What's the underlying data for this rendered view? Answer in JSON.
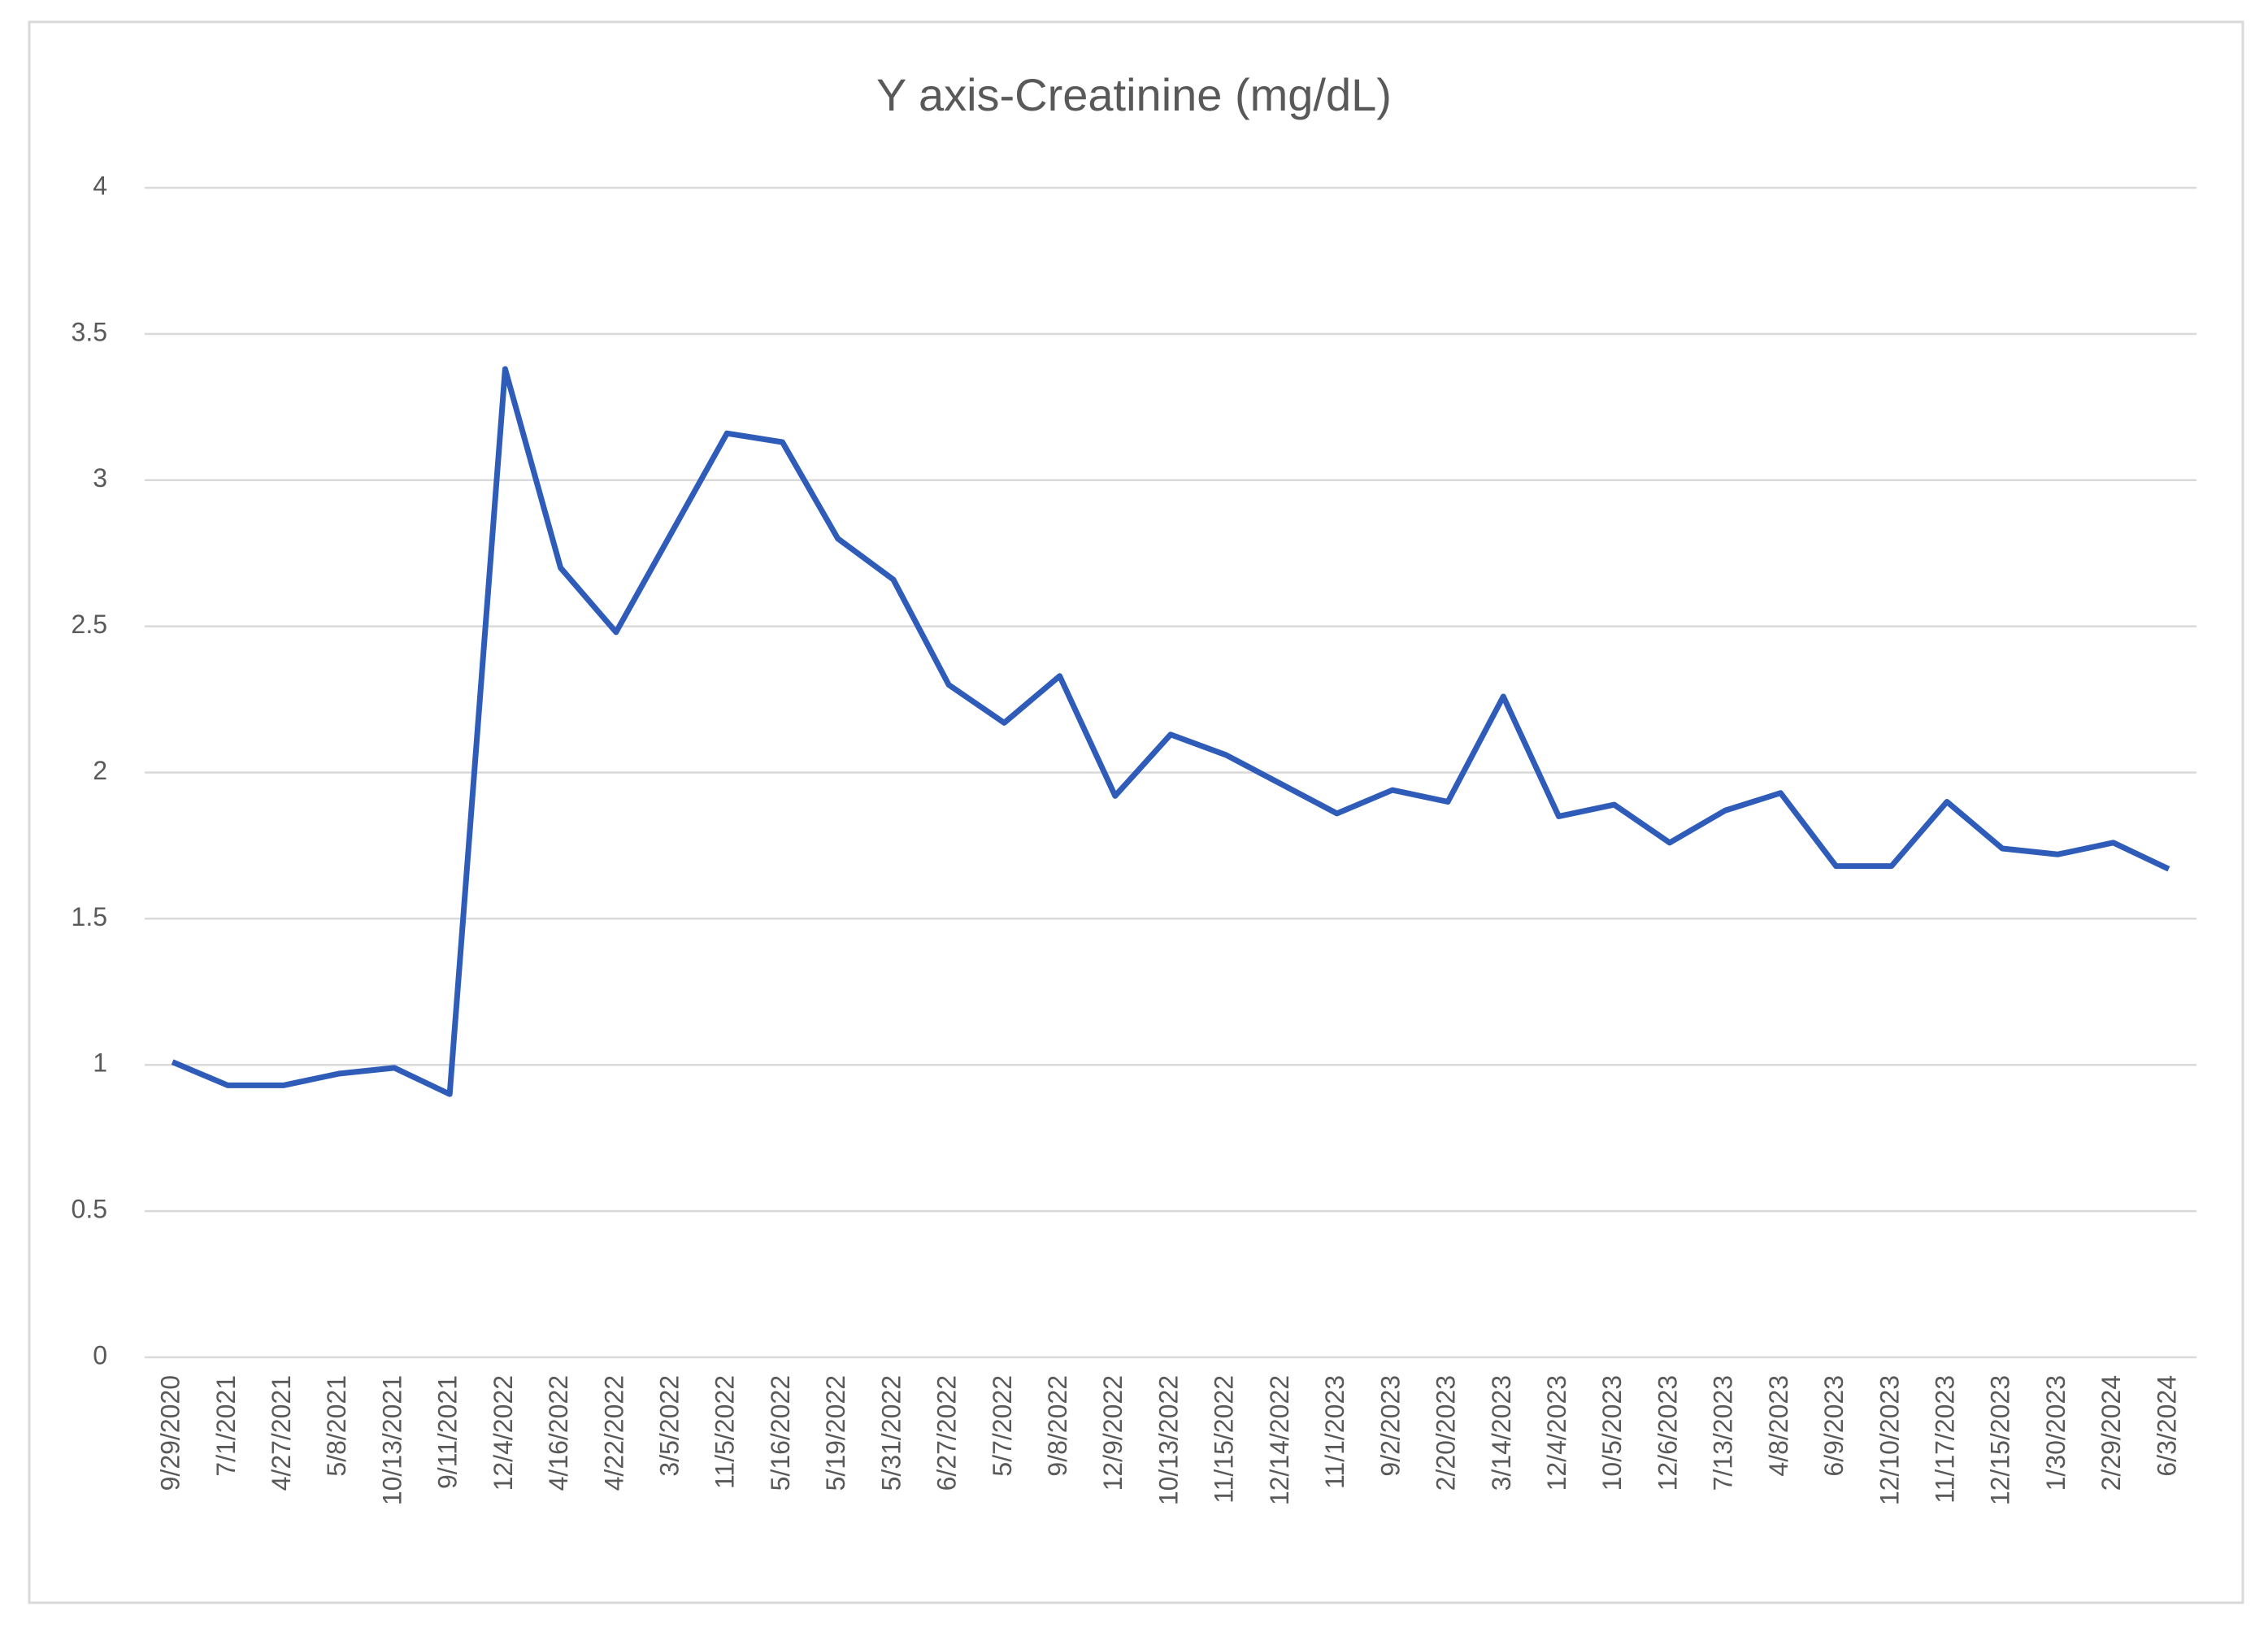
{
  "chart_data": {
    "type": "line",
    "title": "Y axis-Creatinine (mg/dL)",
    "categories": [
      "9/29/2020",
      "7/1/2021",
      "4/27/2021",
      "5/8/2021",
      "10/13/2021",
      "9/11/2021",
      "12/4/2022",
      "4/16/2022",
      "4/22/2022",
      "3/5/2022",
      "11/5/2022",
      "5/16/2022",
      "5/19/2022",
      "5/31/2022",
      "6/27/2022",
      "5/7/2022",
      "9/8/2022",
      "12/9/2022",
      "10/13/2022",
      "11/15/2022",
      "12/14/2022",
      "11/1/2023",
      "9/2/2023",
      "2/20/2023",
      "3/14/2023",
      "12/4/2023",
      "10/5/2023",
      "12/6/2023",
      "7/13/2023",
      "4/8/2023",
      "6/9/2023",
      "12/10/2023",
      "11/17/2023",
      "12/15/2023",
      "1/30/2023",
      "2/29/2024",
      "6/3/2024"
    ],
    "values": [
      1.01,
      0.93,
      0.93,
      0.97,
      0.99,
      0.9,
      3.38,
      2.7,
      2.48,
      2.82,
      3.16,
      3.13,
      2.8,
      2.66,
      2.3,
      2.17,
      2.33,
      1.92,
      2.13,
      2.06,
      1.96,
      1.86,
      1.94,
      1.9,
      2.26,
      1.85,
      1.89,
      1.76,
      1.87,
      1.93,
      1.68,
      1.68,
      1.9,
      1.74,
      1.72,
      1.76,
      1.67
    ],
    "color": "#2e5cb8",
    "ylim": [
      0,
      4
    ],
    "yticks": [
      0,
      0.5,
      1,
      1.5,
      2,
      2.5,
      3,
      3.5,
      4
    ],
    "grid": true
  }
}
